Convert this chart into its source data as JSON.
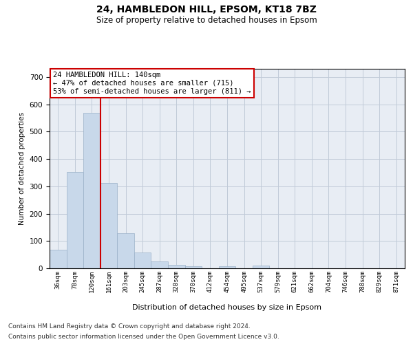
{
  "title1": "24, HAMBLEDON HILL, EPSOM, KT18 7BZ",
  "title2": "Size of property relative to detached houses in Epsom",
  "xlabel": "Distribution of detached houses by size in Epsom",
  "ylabel": "Number of detached properties",
  "categories": [
    "36sqm",
    "78sqm",
    "120sqm",
    "161sqm",
    "203sqm",
    "245sqm",
    "287sqm",
    "328sqm",
    "370sqm",
    "412sqm",
    "454sqm",
    "495sqm",
    "537sqm",
    "579sqm",
    "621sqm",
    "662sqm",
    "704sqm",
    "746sqm",
    "788sqm",
    "829sqm",
    "871sqm"
  ],
  "values": [
    68,
    352,
    570,
    312,
    128,
    57,
    25,
    13,
    7,
    0,
    8,
    0,
    10,
    0,
    0,
    0,
    0,
    0,
    0,
    0,
    0
  ],
  "bar_color": "#c8d8ea",
  "bar_edge_color": "#9ab0c8",
  "vline_after_index": 2,
  "vline_color": "#cc0000",
  "annotation_line1": "24 HAMBLEDON HILL: 140sqm",
  "annotation_line2": "← 47% of detached houses are smaller (715)",
  "annotation_line3": "53% of semi-detached houses are larger (811) →",
  "annotation_box_color": "#ffffff",
  "annotation_box_edge": "#cc0000",
  "ylim": [
    0,
    730
  ],
  "yticks": [
    0,
    100,
    200,
    300,
    400,
    500,
    600,
    700
  ],
  "grid_color": "#c0cad8",
  "bg_color": "#e8edf4",
  "footnote_line1": "Contains HM Land Registry data © Crown copyright and database right 2024.",
  "footnote_line2": "Contains public sector information licensed under the Open Government Licence v3.0."
}
